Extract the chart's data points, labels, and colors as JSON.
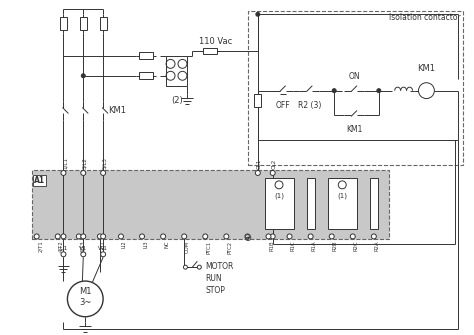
{
  "bg_color": "#ffffff",
  "diagram_bg": "#c8c8c8",
  "isolation_contactor_label": "Isolation contactor",
  "label_110vac": "110 Vac",
  "label_2": "(2)",
  "label_km1": "KM1",
  "label_on": "ON",
  "label_off": "OFF",
  "label_r2_3": "R2 (3)",
  "label_motor": "MOTOR\nRUN\nSTOP",
  "label_m1": "M1\n3~",
  "label_a1": "A1",
  "line_color": "#333333",
  "gray_line": "#888888",
  "dashed_color": "#666666"
}
